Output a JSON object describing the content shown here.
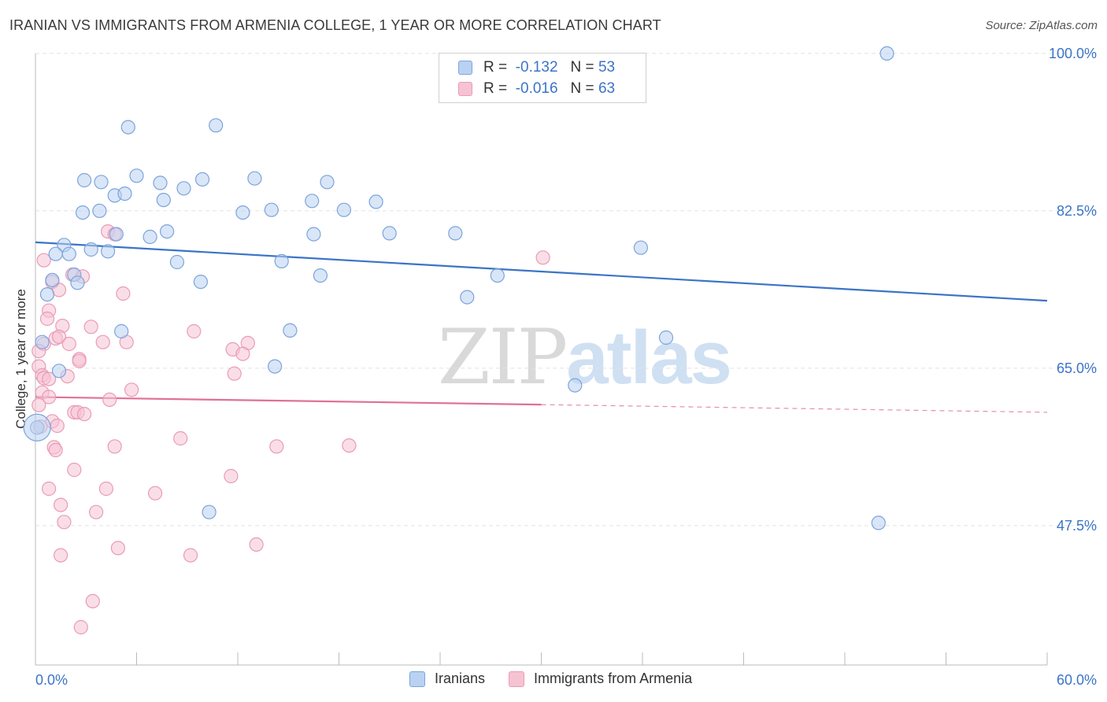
{
  "title": "IRANIAN VS IMMIGRANTS FROM ARMENIA COLLEGE, 1 YEAR OR MORE CORRELATION CHART",
  "source": "Source: ZipAtlas.com",
  "watermark": {
    "part1": "ZIP",
    "part2": "atlas"
  },
  "colors": {
    "blue": "#3b74c7",
    "blue_fill": "#b9d2f2",
    "blue_stroke": "#7ca4db",
    "pink": "#e07098",
    "pink_fill": "#f6c3d3",
    "pink_stroke": "#ea9bb6",
    "axis_text": "#3b74c7",
    "grid": "#e2e2e2"
  },
  "legend": {
    "rows": [
      {
        "r_label": "R =",
        "r_value": "-0.132",
        "n_label": "N =",
        "n_value": "53"
      },
      {
        "r_label": "R =",
        "r_value": "-0.016",
        "n_label": "N =",
        "n_value": "63"
      }
    ]
  },
  "bottom_legend": [
    "Iranians",
    "Immigrants from Armenia"
  ],
  "chart_data": {
    "type": "scatter",
    "title": "IRANIAN VS IMMIGRANTS FROM ARMENIA COLLEGE, 1 YEAR OR MORE CORRELATION CHART",
    "xlabel": "",
    "ylabel": "College, 1 year or more",
    "xlim": [
      0,
      60
    ],
    "ylim": [
      32,
      102
    ],
    "x_tick_labels": [
      "0.0%",
      "60.0%"
    ],
    "y_ticks": [
      47.5,
      65.0,
      82.5,
      100.0
    ],
    "y_tick_labels": [
      "47.5%",
      "65.0%",
      "82.5%",
      "100.0%"
    ],
    "grid": true,
    "legend_position": "top-center",
    "series": [
      {
        "name": "Iranians",
        "color": "#3b74c7",
        "r": -0.132,
        "n": 53,
        "trend": {
          "x": [
            0,
            60
          ],
          "y": [
            79.0,
            72.5
          ],
          "dashed_from": null
        },
        "points": [
          [
            50.5,
            100.0
          ],
          [
            5.5,
            91.8
          ],
          [
            10.7,
            92.0
          ],
          [
            2.9,
            85.9
          ],
          [
            3.9,
            85.7
          ],
          [
            6.0,
            86.4
          ],
          [
            7.4,
            85.6
          ],
          [
            9.9,
            86.0
          ],
          [
            13.0,
            86.1
          ],
          [
            8.8,
            85.0
          ],
          [
            4.7,
            84.2
          ],
          [
            5.3,
            84.4
          ],
          [
            7.6,
            83.7
          ],
          [
            3.8,
            82.5
          ],
          [
            2.8,
            82.3
          ],
          [
            12.3,
            82.3
          ],
          [
            14.0,
            82.6
          ],
          [
            16.4,
            83.6
          ],
          [
            17.3,
            85.7
          ],
          [
            18.3,
            82.6
          ],
          [
            20.2,
            83.5
          ],
          [
            4.8,
            79.9
          ],
          [
            6.8,
            79.6
          ],
          [
            7.8,
            80.2
          ],
          [
            16.5,
            79.9
          ],
          [
            21.0,
            80.0
          ],
          [
            24.9,
            80.0
          ],
          [
            1.7,
            78.7
          ],
          [
            3.3,
            78.2
          ],
          [
            1.2,
            77.7
          ],
          [
            2.0,
            77.7
          ],
          [
            4.3,
            78.0
          ],
          [
            8.4,
            76.8
          ],
          [
            14.6,
            76.9
          ],
          [
            35.9,
            78.4
          ],
          [
            2.3,
            75.4
          ],
          [
            1.0,
            74.8
          ],
          [
            2.5,
            74.5
          ],
          [
            9.8,
            74.6
          ],
          [
            16.9,
            75.3
          ],
          [
            25.6,
            72.9
          ],
          [
            27.4,
            75.3
          ],
          [
            0.7,
            73.2
          ],
          [
            5.1,
            69.1
          ],
          [
            15.1,
            69.2
          ],
          [
            37.4,
            68.4
          ],
          [
            0.4,
            67.9
          ],
          [
            14.2,
            65.2
          ],
          [
            32.0,
            63.1
          ],
          [
            1.4,
            64.7
          ],
          [
            10.3,
            49.0
          ],
          [
            50.0,
            47.8
          ],
          [
            0.1,
            58.4
          ]
        ]
      },
      {
        "name": "Immigrants from Armenia",
        "color": "#e07098",
        "r": -0.016,
        "n": 63,
        "trend": {
          "x": [
            0,
            60
          ],
          "y": [
            61.8,
            60.1
          ],
          "dashed_from": 30
        },
        "points": [
          [
            4.3,
            80.2
          ],
          [
            4.7,
            79.9
          ],
          [
            30.1,
            77.3
          ],
          [
            0.5,
            77.0
          ],
          [
            2.2,
            75.4
          ],
          [
            1.0,
            74.6
          ],
          [
            2.8,
            75.2
          ],
          [
            5.2,
            73.3
          ],
          [
            1.4,
            73.7
          ],
          [
            0.8,
            71.4
          ],
          [
            0.7,
            70.5
          ],
          [
            1.6,
            69.7
          ],
          [
            3.3,
            69.6
          ],
          [
            9.4,
            69.1
          ],
          [
            0.5,
            67.7
          ],
          [
            1.2,
            68.3
          ],
          [
            1.4,
            68.5
          ],
          [
            2.0,
            67.7
          ],
          [
            4.0,
            67.9
          ],
          [
            5.4,
            67.9
          ],
          [
            11.7,
            67.1
          ],
          [
            12.6,
            67.8
          ],
          [
            0.2,
            66.9
          ],
          [
            2.6,
            66.0
          ],
          [
            12.3,
            66.6
          ],
          [
            2.6,
            65.8
          ],
          [
            0.2,
            65.2
          ],
          [
            0.4,
            64.2
          ],
          [
            0.5,
            63.9
          ],
          [
            0.8,
            63.8
          ],
          [
            1.9,
            64.1
          ],
          [
            11.8,
            64.4
          ],
          [
            0.4,
            62.3
          ],
          [
            0.8,
            61.8
          ],
          [
            4.4,
            61.5
          ],
          [
            5.7,
            62.6
          ],
          [
            2.3,
            60.1
          ],
          [
            2.5,
            60.1
          ],
          [
            2.9,
            59.9
          ],
          [
            0.2,
            60.9
          ],
          [
            0.3,
            58.5
          ],
          [
            1.0,
            59.1
          ],
          [
            1.3,
            58.6
          ],
          [
            8.6,
            57.2
          ],
          [
            1.1,
            56.2
          ],
          [
            1.2,
            55.9
          ],
          [
            4.7,
            56.3
          ],
          [
            14.3,
            56.3
          ],
          [
            18.6,
            56.4
          ],
          [
            2.3,
            53.7
          ],
          [
            11.6,
            53.0
          ],
          [
            0.8,
            51.6
          ],
          [
            4.2,
            51.6
          ],
          [
            7.1,
            51.1
          ],
          [
            1.5,
            49.8
          ],
          [
            3.6,
            49.0
          ],
          [
            1.7,
            47.9
          ],
          [
            4.9,
            45.0
          ],
          [
            13.1,
            45.4
          ],
          [
            1.5,
            44.2
          ],
          [
            9.2,
            44.2
          ],
          [
            3.4,
            39.1
          ],
          [
            2.7,
            36.2
          ]
        ]
      }
    ]
  }
}
